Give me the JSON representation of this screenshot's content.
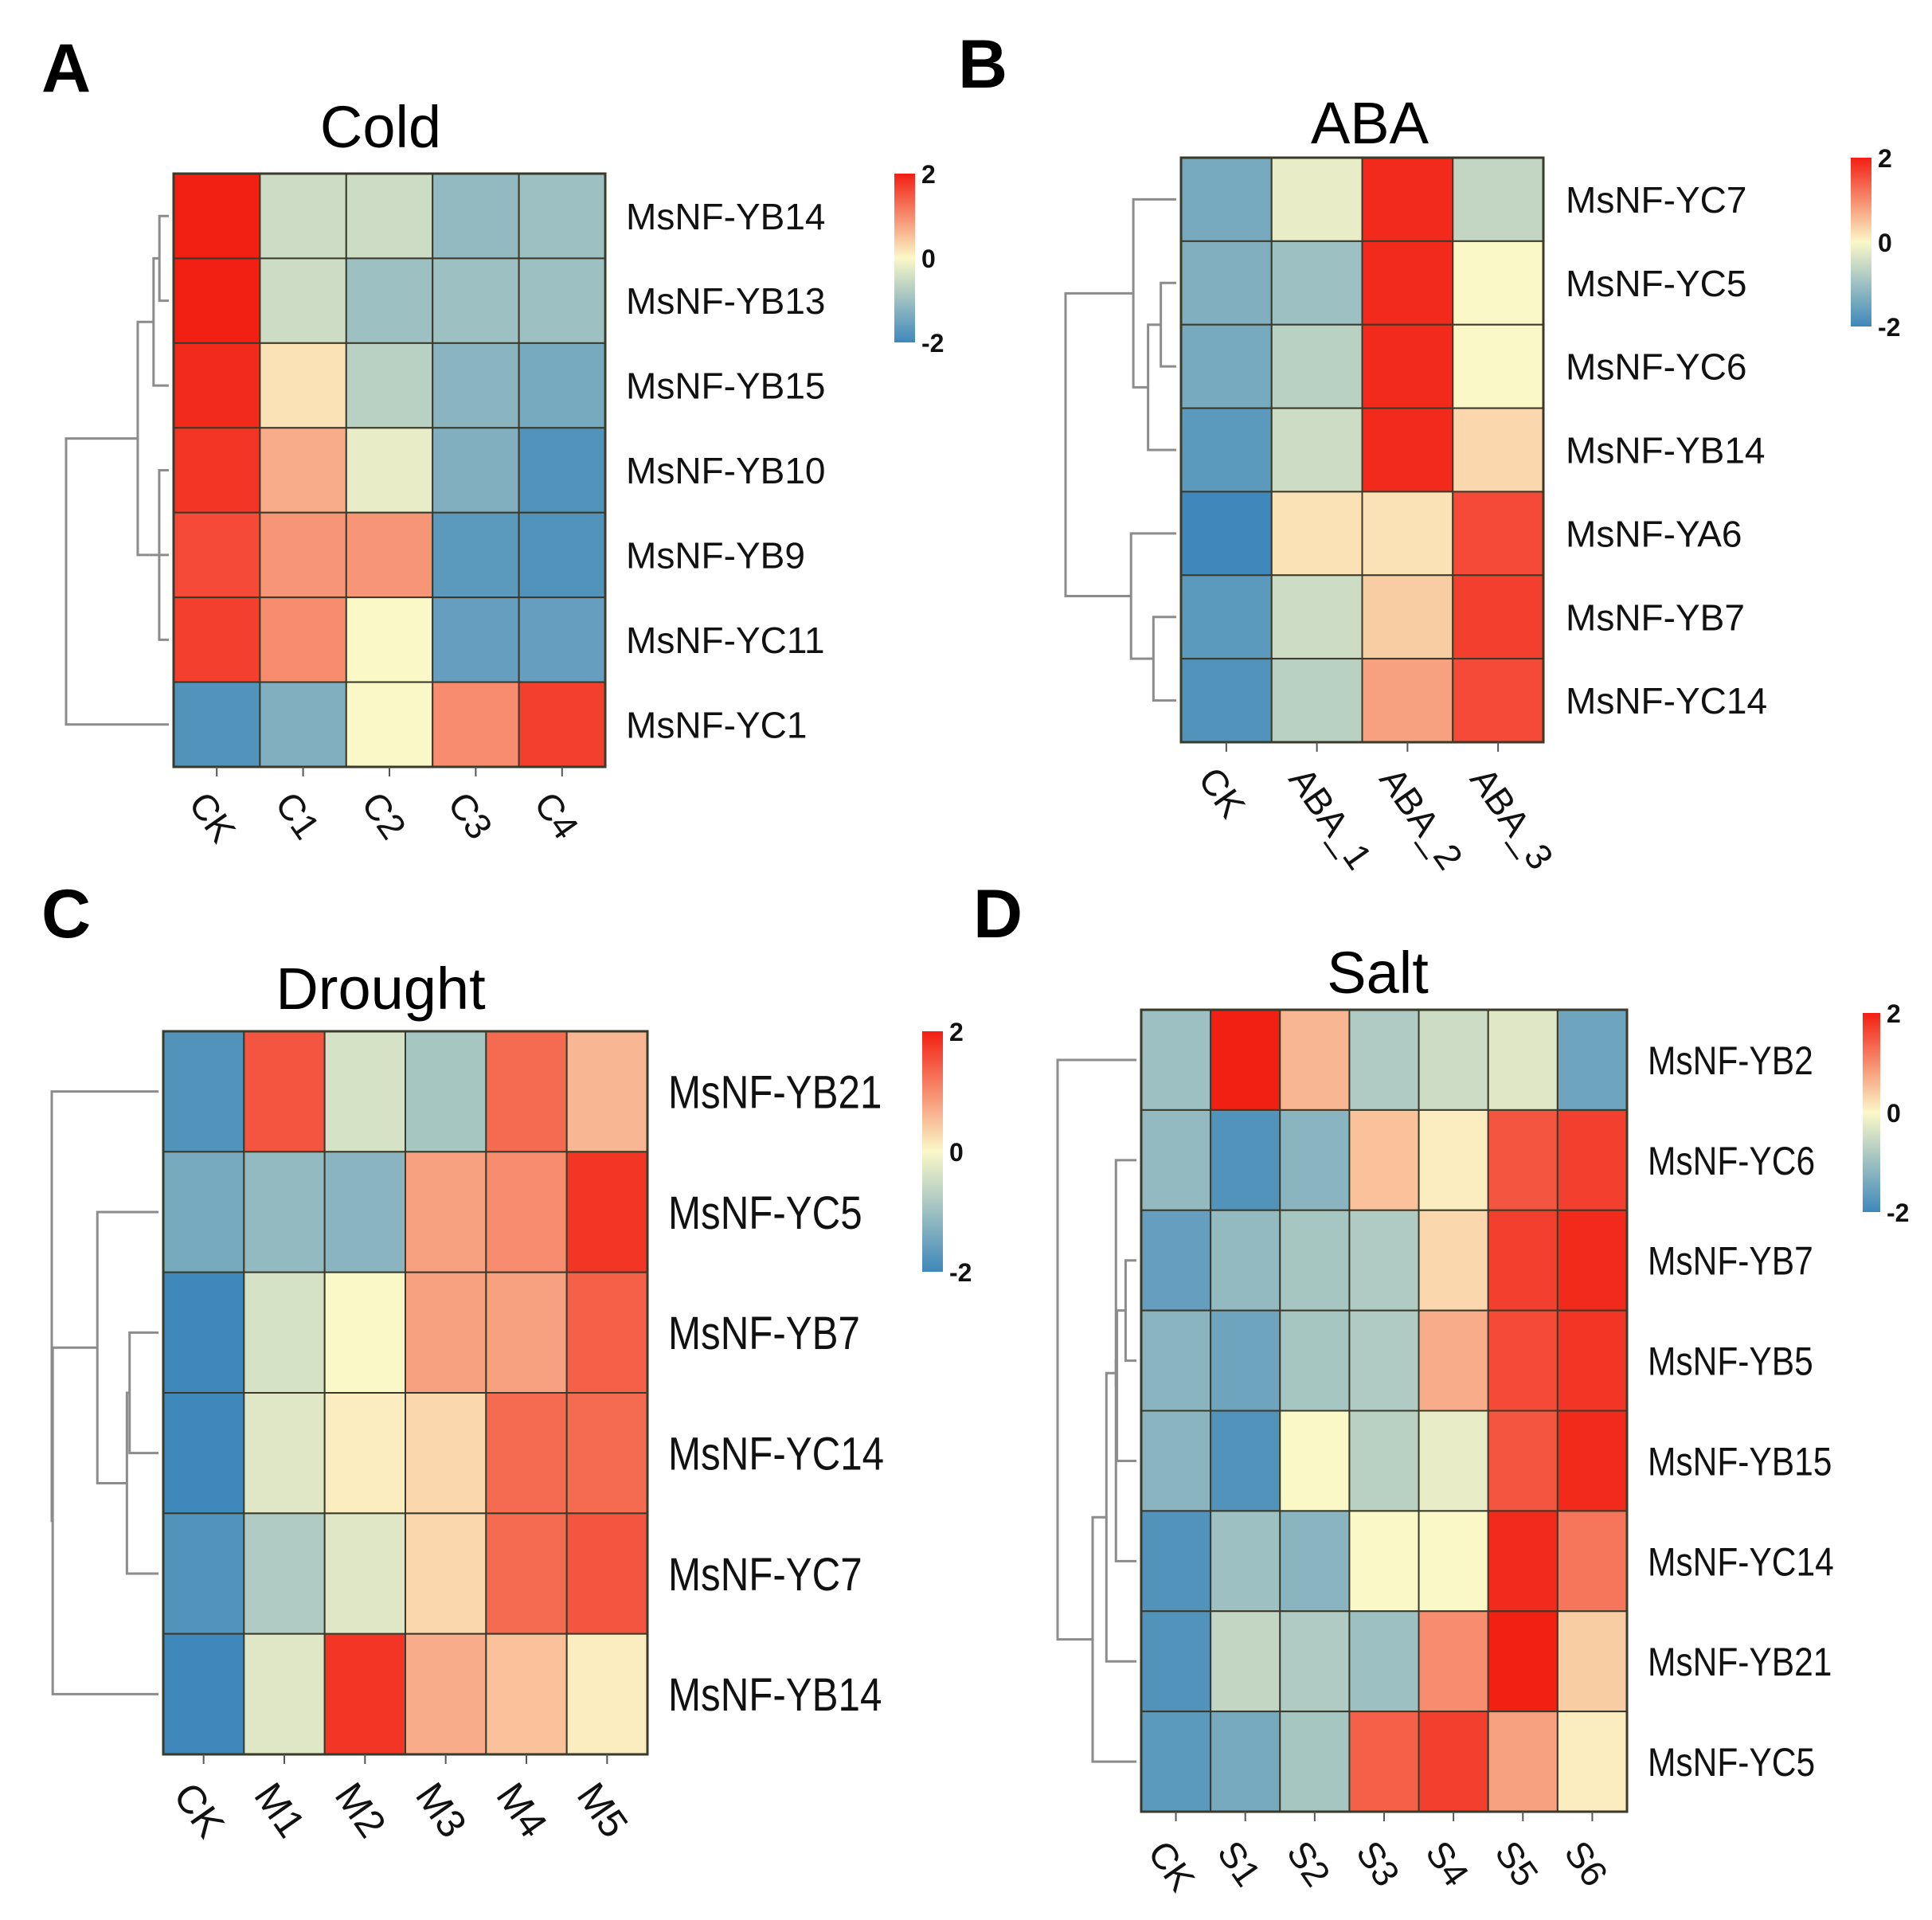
{
  "colors": {
    "low": "#3f88bb",
    "mid": "#fbf8c8",
    "high": "#f21f13"
  },
  "chart_data": [
    {
      "panel": "A",
      "type": "heatmap",
      "title": "Cold",
      "rows": [
        "MsNF-YB14",
        "MsNF-YB13",
        "MsNF-YB15",
        "MsNF-YB10",
        "MsNF-YB9",
        "MsNF-YC11",
        "MsNF-YC1"
      ],
      "columns": [
        "CK",
        "C1",
        "C2",
        "C3",
        "C4"
      ],
      "values": [
        [
          2.0,
          -0.5,
          -0.5,
          -1.1,
          -1.0
        ],
        [
          2.0,
          -0.5,
          -1.0,
          -1.0,
          -1.0
        ],
        [
          1.9,
          0.2,
          -0.7,
          -1.2,
          -1.4
        ],
        [
          1.8,
          0.7,
          -0.2,
          -1.3,
          -1.8
        ],
        [
          1.6,
          0.9,
          0.9,
          -1.7,
          -1.8
        ],
        [
          1.7,
          1.0,
          0.0,
          -1.6,
          -1.6
        ],
        [
          -1.8,
          -1.3,
          0.0,
          1.0,
          1.7
        ]
      ],
      "legend": {
        "ticks": [
          "2",
          "0",
          "-2"
        ],
        "range": [
          -2,
          2
        ]
      }
    },
    {
      "panel": "B",
      "type": "heatmap",
      "title": "ABA",
      "rows": [
        "MsNF-YC7",
        "MsNF-YC5",
        "MsNF-YC6",
        "MsNF-YB14",
        "MsNF-YA6",
        "MsNF-YB7",
        "MsNF-YC14"
      ],
      "columns": [
        "CK",
        "ABA_1",
        "ABA_2",
        "ABA_3"
      ],
      "values": [
        [
          -1.4,
          -0.2,
          1.9,
          -0.6
        ],
        [
          -1.3,
          -1.0,
          1.9,
          0.0
        ],
        [
          -1.4,
          -0.7,
          1.9,
          0.0
        ],
        [
          -1.7,
          -0.5,
          1.9,
          0.3
        ],
        [
          -2.0,
          0.2,
          0.2,
          1.6
        ],
        [
          -1.7,
          -0.5,
          0.4,
          1.7
        ],
        [
          -1.8,
          -0.7,
          0.8,
          1.6
        ]
      ],
      "legend": {
        "ticks": [
          "2",
          "0",
          "-2"
        ],
        "range": [
          -2,
          2
        ]
      }
    },
    {
      "panel": "C",
      "type": "heatmap",
      "title": "Drought",
      "rows": [
        "MsNF-YB21",
        "MsNF-YC5",
        "MsNF-YB7",
        "MsNF-YC14",
        "MsNF-YC7",
        "MsNF-YB14"
      ],
      "columns": [
        "CK",
        "M1",
        "M2",
        "M3",
        "M4",
        "M5"
      ],
      "values": [
        [
          -1.8,
          1.5,
          -0.4,
          -0.9,
          1.3,
          0.6
        ],
        [
          -1.4,
          -1.1,
          -1.2,
          0.8,
          1.0,
          1.8
        ],
        [
          -2.2,
          -0.4,
          0.0,
          0.8,
          0.8,
          1.4
        ],
        [
          -2.2,
          -0.3,
          0.1,
          0.3,
          1.3,
          1.3
        ],
        [
          -1.8,
          -0.8,
          -0.3,
          0.3,
          1.3,
          1.5
        ],
        [
          -2.1,
          -0.3,
          1.8,
          0.7,
          0.5,
          0.1
        ]
      ],
      "legend": {
        "ticks": [
          "2",
          "0",
          "-2"
        ],
        "range": [
          -2,
          2
        ]
      }
    },
    {
      "panel": "D",
      "type": "heatmap",
      "title": "Salt",
      "rows": [
        "MsNF-YB2",
        "MsNF-YC6",
        "MsNF-YB7",
        "MsNF-YB5",
        "MsNF-YB15",
        "MsNF-YC14",
        "MsNF-YB21",
        "MsNF-YC5"
      ],
      "columns": [
        "CK",
        "S1",
        "S2",
        "S3",
        "S4",
        "S5",
        "S6"
      ],
      "values": [
        [
          -1.0,
          2.1,
          0.6,
          -0.8,
          -0.5,
          -0.3,
          -1.5
        ],
        [
          -1.1,
          -1.8,
          -1.2,
          0.5,
          0.1,
          1.5,
          1.7
        ],
        [
          -1.6,
          -1.1,
          -0.9,
          -0.8,
          0.3,
          1.7,
          1.9
        ],
        [
          -1.2,
          -1.5,
          -0.9,
          -0.8,
          0.7,
          1.6,
          1.8
        ],
        [
          -1.2,
          -1.8,
          0.0,
          -0.7,
          -0.2,
          1.5,
          1.9
        ],
        [
          -1.8,
          -1.0,
          -1.2,
          0.0,
          0.0,
          1.9,
          1.2
        ],
        [
          -1.8,
          -0.6,
          -0.8,
          -1.0,
          1.0,
          2.1,
          0.4
        ],
        [
          -1.7,
          -1.4,
          -0.9,
          1.4,
          1.7,
          0.8,
          0.1
        ]
      ],
      "legend": {
        "ticks": [
          "2",
          "0",
          "-2"
        ],
        "range": [
          -2,
          2
        ]
      }
    }
  ]
}
